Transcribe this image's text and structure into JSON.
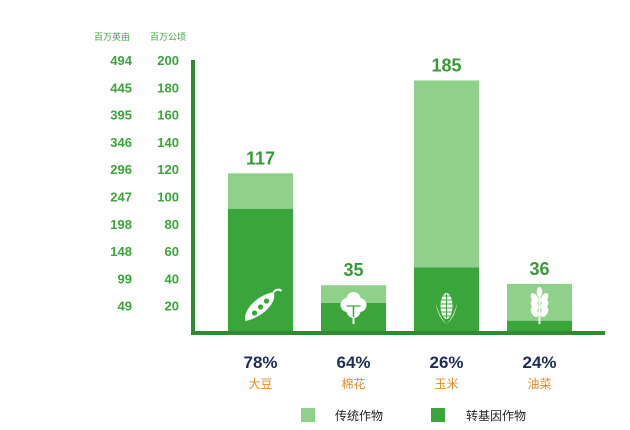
{
  "chart_data": {
    "type": "bar",
    "stacked": true,
    "unit_left": "百万英亩",
    "unit_right": "百万公顷",
    "acre_ticks": [
      "49",
      "99",
      "148",
      "198",
      "247",
      "296",
      "346",
      "395",
      "445",
      "494"
    ],
    "hectare_ticks": [
      "20",
      "40",
      "60",
      "80",
      "100",
      "120",
      "140",
      "160",
      "180",
      "200"
    ],
    "ylim": [
      0,
      200
    ],
    "categories": [
      "大豆",
      "棉花",
      "玉米",
      "油菜"
    ],
    "totals": [
      117,
      35,
      185,
      36
    ],
    "gm_percent": [
      "78%",
      "64%",
      "26%",
      "24%"
    ],
    "series": [
      {
        "name": "转基因作物",
        "values": [
          91,
          22,
          48,
          9
        ]
      },
      {
        "name": "传统作物",
        "values": [
          26,
          13,
          137,
          27
        ]
      }
    ],
    "crop_icons": [
      "soybean-pod-icon",
      "cotton-boll-icon",
      "corn-cob-icon",
      "wheat-ear-icon"
    ],
    "colors": {
      "gm": "#3aa53a",
      "conventional": "#8fd08a",
      "axis": "#2e8b2e",
      "percent": "#1f2d5c",
      "category": "#e08a2a"
    },
    "legend": {
      "position": "bottom-center"
    }
  }
}
